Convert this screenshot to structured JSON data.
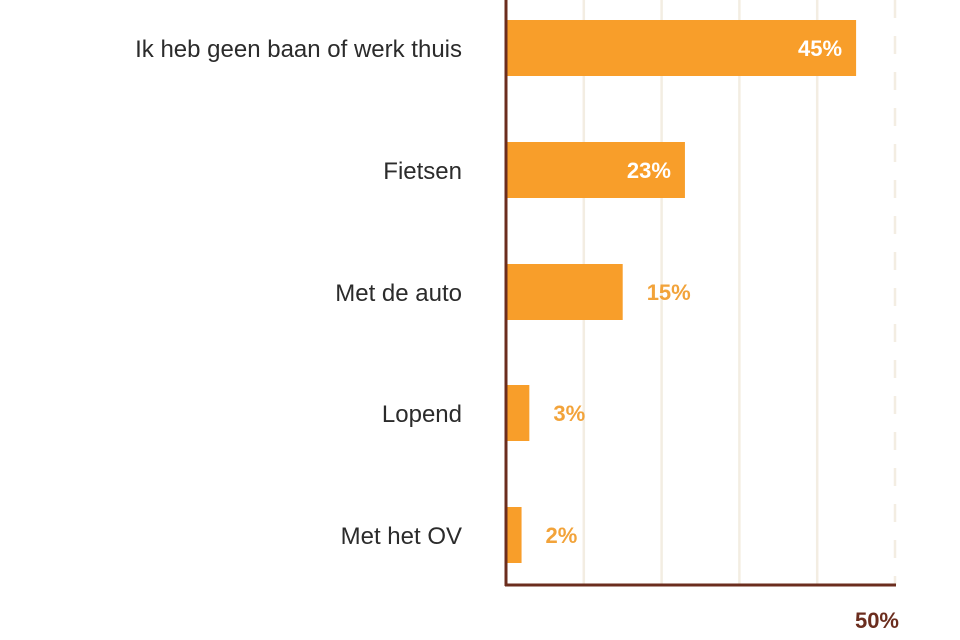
{
  "chart_data": {
    "type": "bar",
    "orientation": "horizontal",
    "title": "",
    "xlabel": "",
    "ylabel": "",
    "categories": [
      "Ik heb geen baan of werk thuis",
      "Fietsen",
      "Met de auto",
      "Lopend",
      "Met het OV"
    ],
    "values": [
      45,
      23,
      15,
      3,
      2
    ],
    "value_labels": [
      "45%",
      "23%",
      "15%",
      "3%",
      "2%"
    ],
    "xlim": [
      0,
      50
    ],
    "x_gridlines": [
      10,
      20,
      30,
      40,
      50
    ],
    "x_tick_labels": [
      {
        "value": 50,
        "label": "50%"
      }
    ],
    "grid": true,
    "legend": "none",
    "colors": {
      "bar": "#f89e2a",
      "value_label_outside": "#f2a33a",
      "value_label_inside": "#ffffff",
      "axis": "#6b2d1e",
      "grid": "#f3ede2",
      "category_text": "#2b2b2b",
      "tick_text": "#6b2d1e"
    }
  }
}
